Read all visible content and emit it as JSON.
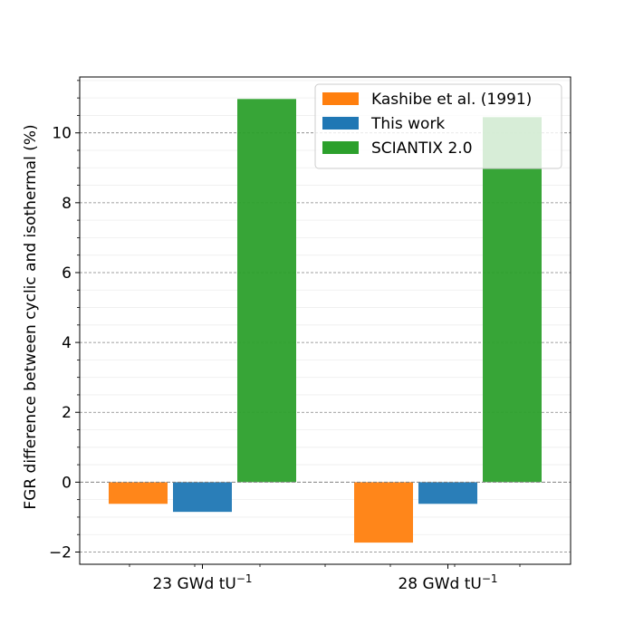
{
  "chart_data": {
    "type": "bar",
    "title": "",
    "xlabel": "",
    "ylabel": "FGR difference between cyclic and isothermal (%)",
    "categories": [
      "23 GWd tU",
      "28 GWd tU"
    ],
    "category_unit_sup": "−1",
    "ylim": [
      -2.35,
      11.6
    ],
    "yticks": [
      -2,
      0,
      2,
      4,
      6,
      8,
      10
    ],
    "ytick_labels": [
      "−2",
      "0",
      "2",
      "4",
      "6",
      "8",
      "10"
    ],
    "grid": "y",
    "legend_position": "top-right",
    "series": [
      {
        "name": "Kashibe et al. (1991)",
        "color": "#ff7f0e",
        "values": [
          -0.62,
          -1.73
        ]
      },
      {
        "name": "This work",
        "color": "#1f77b4",
        "values": [
          -0.85,
          -0.62
        ]
      },
      {
        "name": "SCIANTIX 2.0",
        "color": "#2ca02c",
        "values": [
          10.97,
          10.45
        ]
      }
    ]
  }
}
